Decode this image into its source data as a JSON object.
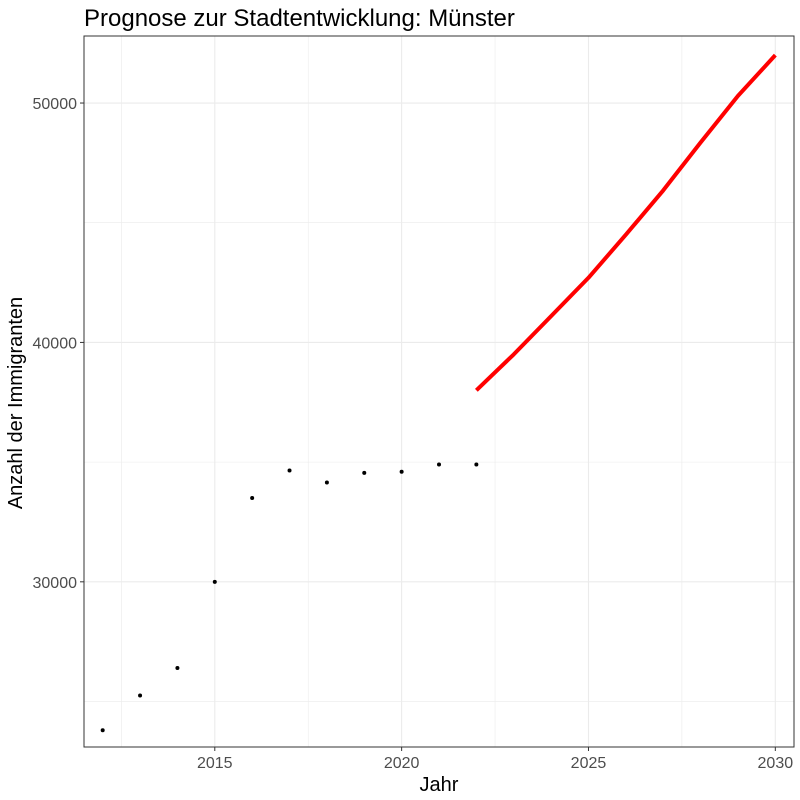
{
  "chart_data": {
    "type": "line",
    "title": "Prognose zur Stadtentwicklung: Münster",
    "xlabel": "Jahr",
    "ylabel": "Anzahl der Immigranten",
    "xlim": [
      2011.5,
      2030.5
    ],
    "ylim": [
      23100,
      52800
    ],
    "x_ticks": [
      2015,
      2020,
      2025,
      2030
    ],
    "x_tick_labels": [
      "2015",
      "2020",
      "2025",
      "2030"
    ],
    "y_ticks": [
      30000,
      40000,
      50000
    ],
    "y_tick_labels": [
      "30000",
      "40000",
      "50000"
    ],
    "grid": true,
    "theme": "bw",
    "series": [
      {
        "kind": "points",
        "color": "#000000",
        "points": [
          {
            "x": 2012,
            "y": 23800
          },
          {
            "x": 2013,
            "y": 25250
          },
          {
            "x": 2014,
            "y": 26400
          },
          {
            "x": 2015,
            "y": 30000
          },
          {
            "x": 2016,
            "y": 33500
          },
          {
            "x": 2017,
            "y": 34650
          },
          {
            "x": 2018,
            "y": 34150
          },
          {
            "x": 2019,
            "y": 34550
          },
          {
            "x": 2020,
            "y": 34600
          },
          {
            "x": 2021,
            "y": 34900
          },
          {
            "x": 2022,
            "y": 34900
          }
        ]
      },
      {
        "kind": "line",
        "color": "#ff0000",
        "points": [
          {
            "x": 2022,
            "y": 38000
          },
          {
            "x": 2023,
            "y": 39500
          },
          {
            "x": 2024,
            "y": 41100
          },
          {
            "x": 2025,
            "y": 42700
          },
          {
            "x": 2026,
            "y": 44500
          },
          {
            "x": 2027,
            "y": 46350
          },
          {
            "x": 2028,
            "y": 48350
          },
          {
            "x": 2029,
            "y": 50300
          },
          {
            "x": 2030,
            "y": 52000
          }
        ]
      }
    ]
  }
}
